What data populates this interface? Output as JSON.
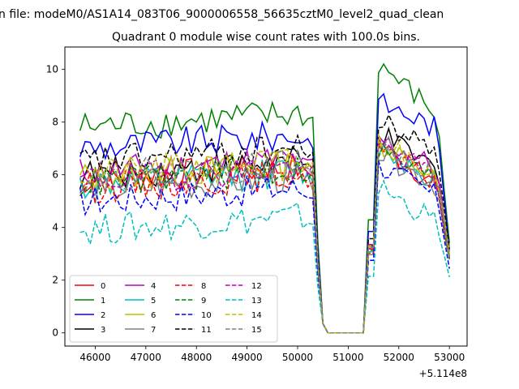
{
  "suptitle": "n file: modeM0/AS1A14_083T06_9000006558_56635cztM0_level2_quad_clean",
  "chart_data": {
    "type": "line",
    "title": "Quadrant 0 module wise count rates with 100.0s bins.",
    "xlabel": "",
    "ylabel": "",
    "x_offset_label": "+5.114e8",
    "xlim": [
      45400,
      53350
    ],
    "ylim": [
      -0.5,
      10.85
    ],
    "xticks": [
      46000,
      47000,
      48000,
      49000,
      50000,
      51000,
      52000,
      53000
    ],
    "yticks": [
      0,
      2,
      4,
      6,
      8,
      10
    ],
    "grid": false,
    "legend": {
      "placement": "lower-left",
      "columns": 4
    },
    "x_range": [
      45700,
      53050
    ],
    "bin": 100,
    "gap_window": [
      50550,
      51350
    ],
    "series": [
      {
        "name": "0",
        "color": "#ff0000",
        "dash": "solid",
        "level": 5.8,
        "end": 2.6,
        "post_peak": 7.2,
        "late": 5.6
      },
      {
        "name": "1",
        "color": "#008000",
        "dash": "solid",
        "level": 7.8,
        "end": 2.5,
        "post_peak": 10.3,
        "late": 8.3
      },
      {
        "name": "2",
        "color": "#0000ff",
        "dash": "solid",
        "level": 7.0,
        "end": 2.3,
        "post_peak": 8.8,
        "late": 7.8
      },
      {
        "name": "3",
        "color": "#000000",
        "dash": "solid",
        "level": 6.0,
        "end": 2.4,
        "post_peak": 7.6,
        "late": 6.2
      },
      {
        "name": "4",
        "color": "#bf00bf",
        "dash": "solid",
        "level": 6.1,
        "end": 2.3,
        "post_peak": 7.4,
        "late": 6.3
      },
      {
        "name": "5",
        "color": "#00bfbf",
        "dash": "solid",
        "level": 5.6,
        "end": 2.2,
        "post_peak": 7.1,
        "late": 5.8
      },
      {
        "name": "6",
        "color": "#bfbf00",
        "dash": "solid",
        "level": 5.9,
        "end": 2.4,
        "post_peak": 7.3,
        "late": 6.0
      },
      {
        "name": "7",
        "color": "#808080",
        "dash": "solid",
        "level": 5.4,
        "end": 2.2,
        "post_peak": 6.9,
        "late": 5.6
      },
      {
        "name": "8",
        "color": "#ff0000",
        "dash": "dashed",
        "level": 5.5,
        "end": 2.3,
        "post_peak": 7.0,
        "late": 5.7
      },
      {
        "name": "9",
        "color": "#008000",
        "dash": "dashed",
        "level": 5.7,
        "end": 2.3,
        "post_peak": 7.0,
        "late": 5.8
      },
      {
        "name": "10",
        "color": "#0000ff",
        "dash": "dashed",
        "level": 5.0,
        "end": 2.0,
        "post_peak": 6.4,
        "late": 5.2
      },
      {
        "name": "11",
        "color": "#000000",
        "dash": "dashed",
        "level": 6.5,
        "end": 2.6,
        "post_peak": 8.1,
        "late": 6.9
      },
      {
        "name": "12",
        "color": "#bf00bf",
        "dash": "dashed",
        "level": 5.8,
        "end": 2.2,
        "post_peak": 7.2,
        "late": 5.9
      },
      {
        "name": "13",
        "color": "#00bfbf",
        "dash": "dashed",
        "level": 3.9,
        "end": 1.6,
        "post_peak": 5.6,
        "late": 4.2
      },
      {
        "name": "14",
        "color": "#bfbf00",
        "dash": "dashed",
        "level": 6.0,
        "end": 2.3,
        "post_peak": 7.4,
        "late": 6.1
      },
      {
        "name": "15",
        "color": "#808080",
        "dash": "dashed",
        "level": 5.9,
        "end": 2.2,
        "post_peak": 7.3,
        "late": 6.0
      }
    ]
  }
}
